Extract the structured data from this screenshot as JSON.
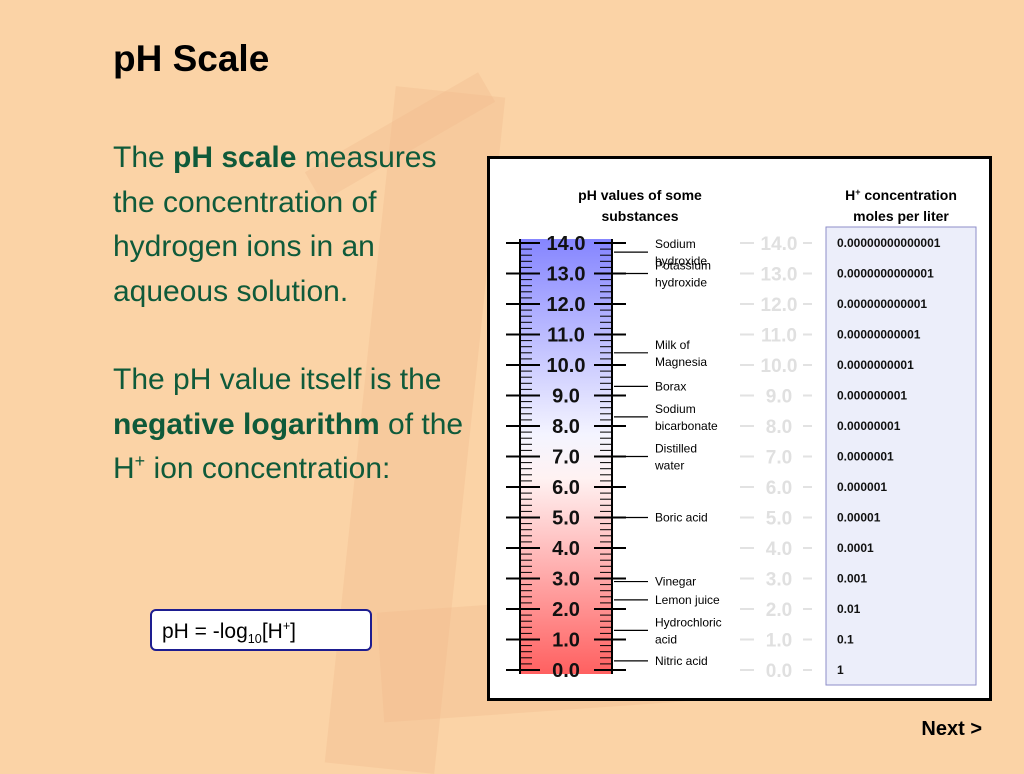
{
  "slide": {
    "title": "pH Scale",
    "p1_pre": "The ",
    "p1_bold": "pH scale",
    "p1_post": " measures the concentration of hydrogen ions in an aqueous solution.",
    "p2_pre": "The pH value itself is the ",
    "p2_bold": "negative logarithm",
    "p2_mid": " of the H",
    "p2_sup": "+",
    "p2_post": " ion concentration:",
    "formula": {
      "pre": "pH = -log",
      "sub": "10",
      "mid": "[H",
      "sup": "+",
      "post": "]"
    },
    "next_label": "Next >"
  },
  "figure": {
    "left_header": [
      "pH values of some",
      "substances"
    ],
    "right_header": [
      "H",
      "+",
      " concentration",
      "moles per liter"
    ]
  },
  "chart_data": {
    "type": "table",
    "ph_values": [
      "14.0",
      "13.0",
      "12.0",
      "11.0",
      "10.0",
      "9.0",
      "8.0",
      "7.0",
      "6.0",
      "5.0",
      "4.0",
      "3.0",
      "2.0",
      "1.0",
      "0.0"
    ],
    "h_concentrations": [
      "0.00000000000001",
      "0.0000000000001",
      "0.000000000001",
      "0.00000000001",
      "0.0000000001",
      "0.000000001",
      "0.00000001",
      "0.0000001",
      "0.000001",
      "0.00001",
      "0.0001",
      "0.001",
      "0.01",
      "0.1",
      "1"
    ],
    "substances": [
      {
        "label": [
          "Sodium",
          "hydroxide"
        ],
        "ph": 13.7
      },
      {
        "label": [
          "Potassium",
          "hydroxide"
        ],
        "ph": 13.0
      },
      {
        "label": [
          "Milk of",
          "Magnesia"
        ],
        "ph": 10.4
      },
      {
        "label": [
          "Borax"
        ],
        "ph": 9.3
      },
      {
        "label": [
          "Sodium",
          "bicarbonate"
        ],
        "ph": 8.3
      },
      {
        "label": [
          "Distilled",
          "water"
        ],
        "ph": 7.0
      },
      {
        "label": [
          "Boric acid"
        ],
        "ph": 5.0
      },
      {
        "label": [
          "Vinegar"
        ],
        "ph": 2.9
      },
      {
        "label": [
          "Lemon juice"
        ],
        "ph": 2.3
      },
      {
        "label": [
          "Hydrochloric",
          "acid"
        ],
        "ph": 1.3
      },
      {
        "label": [
          "Nitric acid"
        ],
        "ph": 0.3
      }
    ]
  }
}
